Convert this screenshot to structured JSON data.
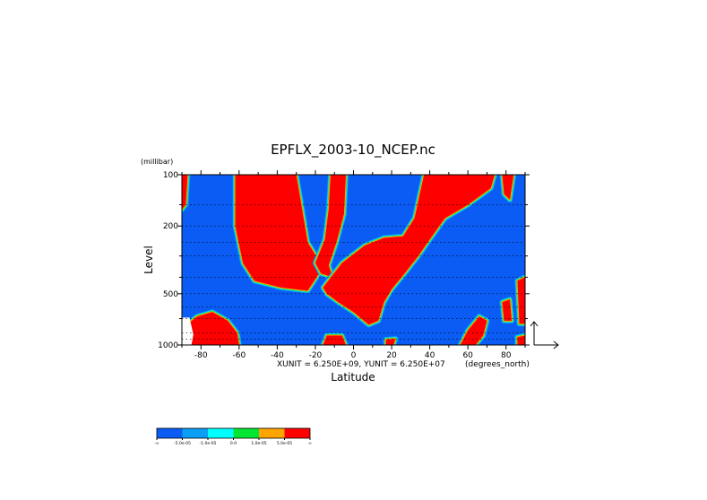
{
  "chart_data": {
    "type": "heatmap",
    "title": "EPFLX_2003-10_NCEP.nc",
    "xlabel": "Latitude",
    "ylabel": "Level",
    "xunit_label": "(degrees_north)",
    "yunit_label": "(millibar)",
    "scale_note": "XUNIT = 6.250E+09, YUNIT = 6.250E+07",
    "x_range": [
      -90,
      90
    ],
    "y_range": [
      1000,
      100
    ],
    "y_scale": "log",
    "grid": "dotted horizontal lines",
    "x_ticks": [
      -80,
      -60,
      -40,
      -20,
      0,
      20,
      40,
      60,
      80
    ],
    "x_tick_labels": [
      "-80",
      "-60",
      "-40",
      "-20",
      "0",
      "20",
      "40",
      "60",
      "80"
    ],
    "y_ticks": [
      100,
      200,
      500,
      1000
    ],
    "y_tick_labels": [
      "100",
      "200",
      "500",
      "1000"
    ],
    "colorbar": {
      "colors": [
        "#0b5cf5",
        "#0a9ff5",
        "#00ffff",
        "#00e632",
        "#ffa500",
        "#ff0000"
      ],
      "labels": [
        "-∞",
        "-5.0e-05",
        "-1.0e-05",
        "0.0",
        "1.0e-05",
        "5.0e-05",
        "∞"
      ]
    },
    "regions": [
      {
        "color": "#ff0000",
        "lat_lat_pressure_outline": [
          [
            -62,
            100
          ],
          [
            -30,
            100
          ],
          [
            -24,
            250
          ],
          [
            -16,
            350
          ],
          [
            -24,
            480
          ],
          [
            -38,
            460
          ],
          [
            -52,
            420
          ],
          [
            -58,
            330
          ],
          [
            -62,
            200
          ]
        ]
      },
      {
        "color": "#ff0000",
        "lat_lat_pressure_outline": [
          [
            -12,
            100
          ],
          [
            -4,
            100
          ],
          [
            -5,
            170
          ],
          [
            -9,
            250
          ],
          [
            -13,
            340
          ],
          [
            -11,
            400
          ],
          [
            -17,
            380
          ],
          [
            -20,
            330
          ],
          [
            -15,
            240
          ],
          [
            -13,
            160
          ]
        ]
      },
      {
        "color": "#ff0000",
        "lat_lat_pressure_outline": [
          [
            -16,
            460
          ],
          [
            -6,
            330
          ],
          [
            6,
            260
          ],
          [
            16,
            235
          ],
          [
            26,
            230
          ],
          [
            32,
            180
          ],
          [
            37,
            100
          ],
          [
            74,
            100
          ],
          [
            72,
            120
          ],
          [
            60,
            150
          ],
          [
            48,
            180
          ],
          [
            40,
            240
          ],
          [
            34,
            300
          ],
          [
            26,
            390
          ],
          [
            20,
            470
          ],
          [
            16,
            560
          ],
          [
            13,
            720
          ],
          [
            8,
            760
          ],
          [
            0,
            640
          ],
          [
            -8,
            560
          ],
          [
            -14,
            500
          ]
        ]
      },
      {
        "color": "#ff0000",
        "lat_lat_pressure_outline": [
          [
            -90,
            100
          ],
          [
            -87,
            100
          ],
          [
            -88,
            150
          ],
          [
            -90,
            160
          ]
        ]
      },
      {
        "color": "#ff0000",
        "lat_lat_pressure_outline": [
          [
            -90,
            800
          ],
          [
            -82,
            680
          ],
          [
            -74,
            640
          ],
          [
            -66,
            720
          ],
          [
            -61,
            850
          ],
          [
            -60,
            1000
          ],
          [
            -90,
            1000
          ]
        ]
      },
      {
        "color": "#ff0000",
        "lat_lat_pressure_outline": [
          [
            -14,
            880
          ],
          [
            -6,
            880
          ],
          [
            -4,
            1000
          ],
          [
            -16,
            1000
          ]
        ]
      },
      {
        "color": "#ff0000",
        "lat_lat_pressure_outline": [
          [
            17,
            930
          ],
          [
            22,
            920
          ],
          [
            21,
            1000
          ],
          [
            17,
            1000
          ]
        ]
      },
      {
        "color": "#ff0000",
        "lat_lat_pressure_outline": [
          [
            56,
            1000
          ],
          [
            60,
            820
          ],
          [
            66,
            680
          ],
          [
            70,
            720
          ],
          [
            68,
            880
          ],
          [
            64,
            1000
          ]
        ]
      },
      {
        "color": "#ff0000",
        "lat_lat_pressure_outline": [
          [
            78,
            100
          ],
          [
            84,
            100
          ],
          [
            82,
            140
          ],
          [
            79,
            130
          ]
        ]
      },
      {
        "color": "#ff0000",
        "lat_lat_pressure_outline": [
          [
            86,
            420
          ],
          [
            90,
            400
          ],
          [
            90,
            750
          ],
          [
            87,
            750
          ]
        ]
      },
      {
        "color": "#ff0000",
        "lat_lat_pressure_outline": [
          [
            78,
            560
          ],
          [
            82,
            540
          ],
          [
            83,
            720
          ],
          [
            79,
            720
          ]
        ]
      },
      {
        "color": "#ff0000",
        "lat_lat_pressure_outline": [
          [
            86,
            900
          ],
          [
            90,
            880
          ],
          [
            90,
            1000
          ],
          [
            86,
            1000
          ]
        ]
      },
      {
        "color": "#ffffff",
        "lat_lat_pressure_outline": [
          [
            -90,
            690
          ],
          [
            -86,
            690
          ],
          [
            -84,
            870
          ],
          [
            -85,
            1000
          ],
          [
            -90,
            1000
          ]
        ]
      }
    ]
  }
}
